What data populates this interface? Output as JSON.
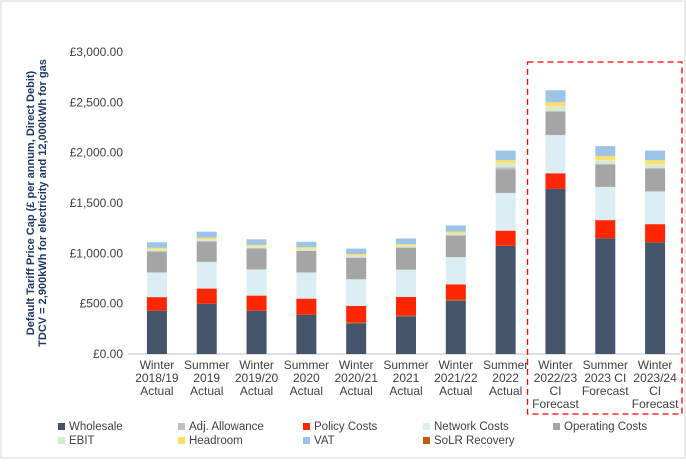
{
  "chart_data": {
    "type": "bar",
    "stacked": true,
    "ylabel_lines": [
      "Default Tariff Price Cap (£ per annum, Direct Debit)",
      "TDCV = 2,900kWh for electricity and 12,000kWh for gas"
    ],
    "ylim": [
      0,
      3000
    ],
    "yticks": [
      "£0.00",
      "£500.00",
      "£1,000.00",
      "£1,500.00",
      "£2,000.00",
      "£2,500.00",
      "£3,000.00"
    ],
    "ytick_values": [
      0,
      500,
      1000,
      1500,
      2000,
      2500,
      3000
    ],
    "grid": false,
    "legend_position": "bottom",
    "categories": [
      [
        "Winter",
        "2018/19",
        "Actual"
      ],
      [
        "Summer",
        "2019",
        "Actual"
      ],
      [
        "Winter",
        "2019/20",
        "Actual"
      ],
      [
        "Summer",
        "2020",
        "Actual"
      ],
      [
        "Winter",
        "2020/21",
        "Actual"
      ],
      [
        "Summer",
        "2021",
        "Actual"
      ],
      [
        "Winter",
        "2021/22",
        "Actual"
      ],
      [
        "Summer",
        "2022",
        "Actual"
      ],
      [
        "Winter",
        "2022/23",
        "CI",
        "Forecast"
      ],
      [
        "Summer",
        "2023 CI",
        "Forecast"
      ],
      [
        "Winter",
        "2023/24",
        "CI",
        "Forecast"
      ]
    ],
    "highlight_categories": [
      8,
      9,
      10
    ],
    "series": [
      {
        "name": "Wholesale",
        "color": "#44546a",
        "values": [
          430,
          500,
          430,
          390,
          305,
          375,
          530,
          1075,
          1640,
          1150,
          1110
        ]
      },
      {
        "name": "SoLR Recovery",
        "color": "#c55a11",
        "values": [
          0,
          0,
          0,
          0,
          12,
          12,
          12,
          0,
          0,
          0,
          0
        ]
      },
      {
        "name": "Policy Costs",
        "color": "#ff2600",
        "values": [
          135,
          150,
          150,
          160,
          160,
          180,
          150,
          150,
          155,
          180,
          180
        ]
      },
      {
        "name": "Network Costs",
        "color": "#dbeef4",
        "values": [
          245,
          265,
          260,
          260,
          265,
          270,
          270,
          375,
          380,
          330,
          325
        ]
      },
      {
        "name": "Operating Costs",
        "color": "#a5a5a5",
        "values": [
          210,
          205,
          210,
          215,
          215,
          220,
          215,
          235,
          235,
          225,
          230
        ]
      },
      {
        "name": "Adj. Allowance",
        "color": "#bfbfbf",
        "values": [
          0,
          0,
          0,
          0,
          0,
          0,
          0,
          20,
          0,
          0,
          0
        ]
      },
      {
        "name": "EBIT",
        "color": "#d9ead3",
        "values": [
          20,
          20,
          20,
          20,
          20,
          20,
          25,
          40,
          50,
          40,
          40
        ]
      },
      {
        "name": "Headroom",
        "color": "#ffe066",
        "values": [
          15,
          15,
          15,
          15,
          15,
          15,
          15,
          30,
          40,
          40,
          40
        ]
      },
      {
        "name": "VAT",
        "color": "#9dc3e6",
        "values": [
          55,
          60,
          55,
          55,
          55,
          55,
          60,
          95,
          120,
          100,
          95
        ]
      }
    ],
    "legend_rows": [
      [
        "Wholesale",
        "Adj. Allowance",
        "Policy Costs",
        "Network Costs",
        "Operating Costs"
      ],
      [
        "EBIT",
        "Headroom",
        "VAT",
        "SoLR Recovery"
      ]
    ]
  }
}
